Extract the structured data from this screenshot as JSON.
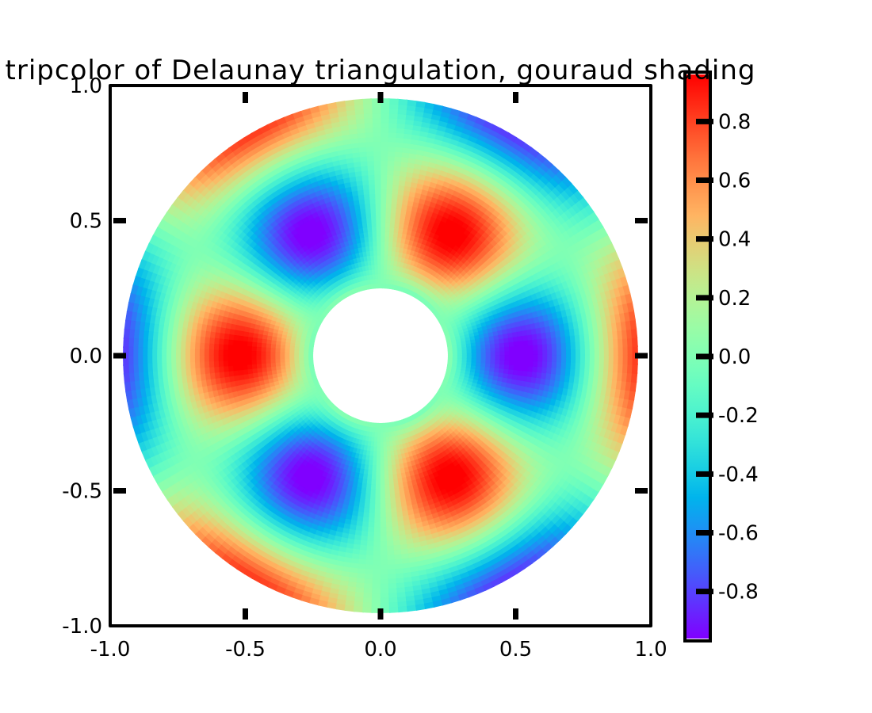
{
  "chart_data": {
    "type": "heatmap",
    "subtype": "tripcolor-annulus",
    "title": "tripcolor of Delaunay triangulation, gouraud shading",
    "style": "xkcd",
    "xlim": [
      -1.0,
      1.0
    ],
    "ylim": [
      -1.0,
      1.0
    ],
    "x_ticks": [
      -1.0,
      -0.5,
      0.0,
      0.5,
      1.0
    ],
    "x_tick_labels": [
      "-1.0",
      "-0.5",
      "0.0",
      "0.5",
      "1.0"
    ],
    "y_ticks": [
      -1.0,
      -0.5,
      0.0,
      0.5,
      1.0
    ],
    "y_tick_labels": [
      "-1.0",
      "-0.5",
      "0.0",
      "0.5",
      "1.0"
    ],
    "grid": false,
    "inner_radius": 0.25,
    "outer_radius": 0.95,
    "field": "z = cos(3*theta) * cos(6*r)",
    "colormap": "rainbow",
    "colorbar": {
      "vmin": -0.96,
      "vmax": 0.96,
      "ticks": [
        0.8,
        0.6,
        0.4,
        0.2,
        0.0,
        -0.2,
        -0.4,
        -0.6,
        -0.8
      ],
      "tick_labels": [
        "0.8",
        "0.6",
        "0.4",
        "0.2",
        "0.0",
        "-0.2",
        "-0.4",
        "-0.6",
        "-0.8"
      ]
    },
    "colors": {
      "min": "#8000ff",
      "low": "#2a8fed",
      "mid": "#80ffb4",
      "high": "#ffb360",
      "max": "#ff1a0d"
    }
  }
}
